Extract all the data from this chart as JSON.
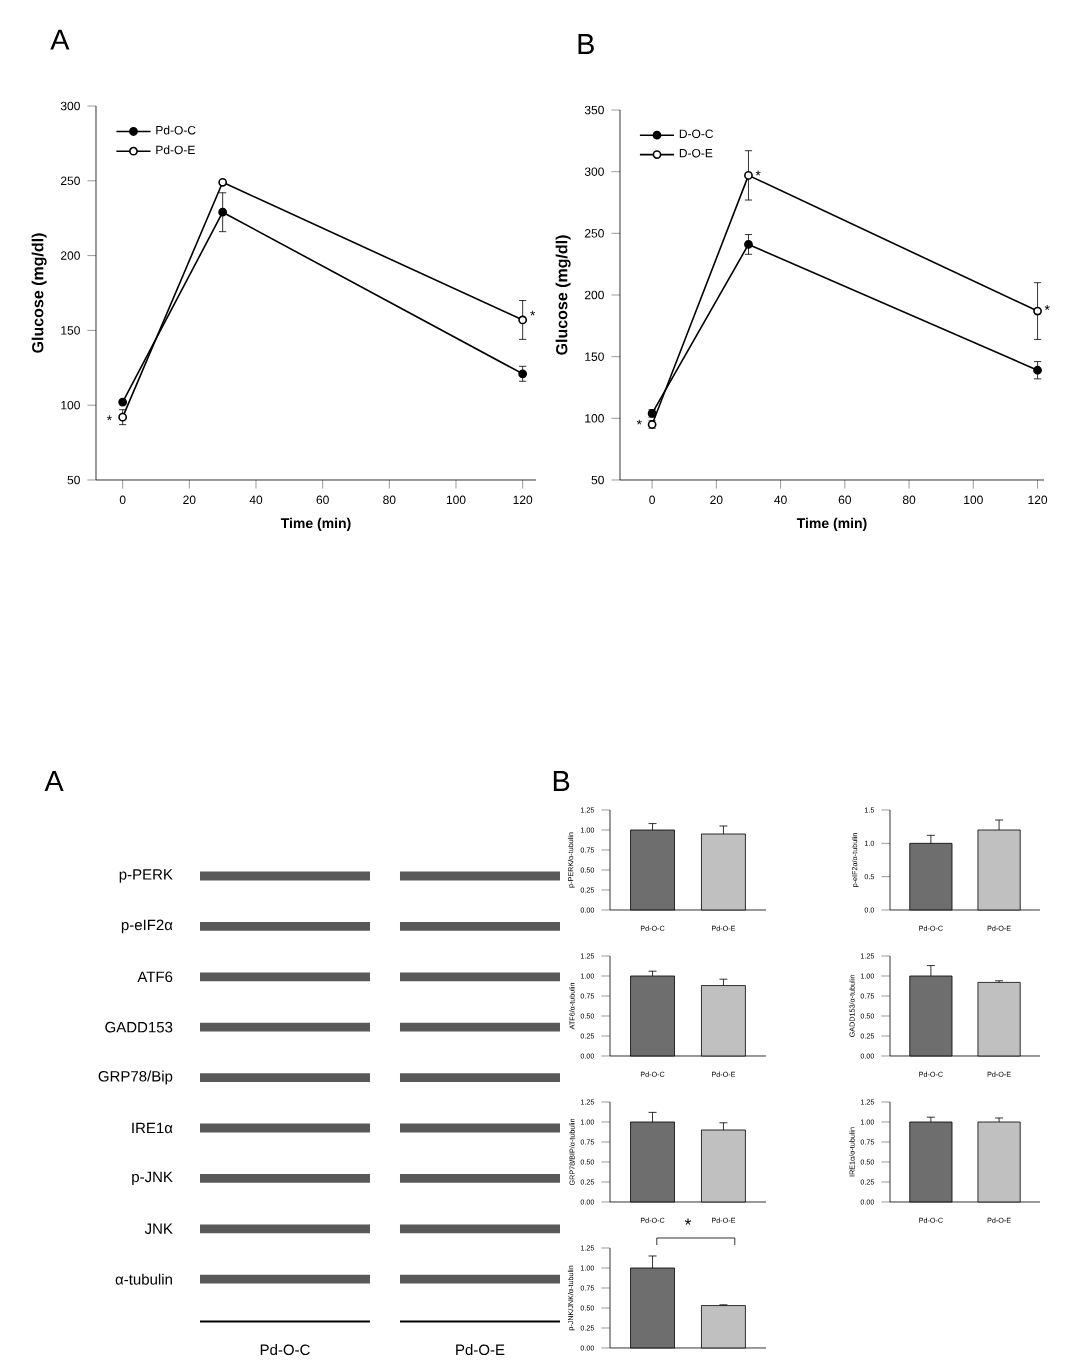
{
  "chart_data": [
    {
      "type": "line",
      "title": "A",
      "xlabel": "Time (min)",
      "ylabel": "Glucose (mg/dl)",
      "x": [
        0,
        30,
        120
      ],
      "xlim": [
        -8,
        124
      ],
      "xticks": [
        0,
        20,
        40,
        60,
        80,
        100,
        120
      ],
      "ylim": [
        50,
        300
      ],
      "yticks": [
        50,
        100,
        150,
        200,
        250,
        300
      ],
      "marker": "circle",
      "line_style": "solid",
      "legend": "top left",
      "grid": false,
      "series": [
        {
          "name": "Pd-O-C",
          "color": "#000000",
          "values": [
            102,
            229,
            121
          ],
          "errors": [
            null,
            13,
            5
          ]
        },
        {
          "name": "Pd-O-E",
          "color": "#000000",
          "values": [
            92,
            249,
            157
          ],
          "errors": [
            5,
            null,
            13
          ]
        }
      ],
      "annotations": [
        {
          "text": "*",
          "x": -4,
          "y": 90
        },
        {
          "text": "*",
          "x": 123,
          "y": 160
        }
      ]
    },
    {
      "type": "line",
      "title": "B",
      "xlabel": "Time (min)",
      "ylabel": "Glucose (mg/dl)",
      "x": [
        0,
        30,
        120
      ],
      "xlim": [
        -10,
        122
      ],
      "xticks": [
        0,
        20,
        40,
        60,
        80,
        100,
        120
      ],
      "ylim": [
        50,
        350
      ],
      "yticks": [
        50,
        100,
        150,
        200,
        250,
        300,
        350
      ],
      "marker": "circle",
      "line_style": "solid",
      "legend": "top left",
      "grid": false,
      "series": [
        {
          "name": "D-O-C",
          "color": "#000000",
          "values": [
            104,
            241,
            139
          ],
          "errors": [
            3,
            8,
            7
          ]
        },
        {
          "name": "D-O-E",
          "color": "#000000",
          "values": [
            95,
            297,
            187
          ],
          "errors": [
            3,
            20,
            23
          ]
        }
      ],
      "annotations": [
        {
          "text": "*",
          "x": -4,
          "y": 95
        },
        {
          "text": "*",
          "x": 33,
          "y": 297
        },
        {
          "text": "*",
          "x": 123,
          "y": 188
        }
      ]
    },
    {
      "type": "other",
      "title": "A",
      "annotations": [
        "p-PERK",
        "p-eIF2α",
        "ATF6",
        "GADD153",
        "GRP78/Bip",
        "IRE1α",
        "p-JNK",
        "JNK",
        "α-tubulin",
        "Pd-O-C",
        "Pd-O-E"
      ]
    },
    {
      "type": "bar",
      "title": "B",
      "ylabel": "p-PERK/α-tubulin",
      "categories": [
        "Pd-O-C",
        "Pd-O-E"
      ],
      "values": [
        1.0,
        0.95
      ],
      "errors": [
        0.08,
        0.1
      ],
      "colors": [
        "#6e6e6e",
        "#c0c0c0"
      ],
      "ylim": [
        0,
        1.25
      ],
      "yticks": [
        {
          "value": 0,
          "label": "0.00"
        },
        {
          "value": 0.25,
          "label": "0.25"
        },
        {
          "value": 0.5,
          "label": "0.50"
        },
        {
          "value": 0.75,
          "label": "0.75"
        },
        {
          "value": 1.0,
          "label": "1.00"
        },
        {
          "value": 1.25,
          "label": "1.25"
        }
      ]
    },
    {
      "type": "bar",
      "ylabel": "p-eIF2α/α-tubulin",
      "categories": [
        "Pd-O-C",
        "Pd-O-E"
      ],
      "values": [
        1.0,
        1.2
      ],
      "errors": [
        0.12,
        0.15
      ],
      "colors": [
        "#6e6e6e",
        "#c0c0c0"
      ],
      "ylim": [
        0,
        1.5
      ],
      "yticks": [
        {
          "value": 0,
          "label": "0.0"
        },
        {
          "value": 0.5,
          "label": "0.5"
        },
        {
          "value": 1.0,
          "label": "1.0"
        },
        {
          "value": 1.5,
          "label": "1.5"
        }
      ]
    },
    {
      "type": "bar",
      "ylabel": "ATF6/α-tubulin",
      "categories": [
        "Pd-O-C",
        "Pd-O-E"
      ],
      "values": [
        1.0,
        0.88
      ],
      "errors": [
        0.06,
        0.08
      ],
      "colors": [
        "#6e6e6e",
        "#c0c0c0"
      ],
      "ylim": [
        0,
        1.25
      ],
      "yticks": [
        {
          "value": 0,
          "label": "0.00"
        },
        {
          "value": 0.25,
          "label": "0.25"
        },
        {
          "value": 0.5,
          "label": "0.50"
        },
        {
          "value": 0.75,
          "label": "0.75"
        },
        {
          "value": 1.0,
          "label": "1.00"
        },
        {
          "value": 1.25,
          "label": "1.25"
        }
      ]
    },
    {
      "type": "bar",
      "ylabel": "GADD153/α-tubulin",
      "categories": [
        "Pd-O-C",
        "Pd-O-E"
      ],
      "values": [
        1.0,
        0.92
      ],
      "errors": [
        0.13,
        0.02
      ],
      "colors": [
        "#6e6e6e",
        "#c0c0c0"
      ],
      "ylim": [
        0,
        1.25
      ],
      "yticks": [
        {
          "value": 0,
          "label": "0.00"
        },
        {
          "value": 0.25,
          "label": "0.25"
        },
        {
          "value": 0.5,
          "label": "0.50"
        },
        {
          "value": 0.75,
          "label": "0.75"
        },
        {
          "value": 1.0,
          "label": "1.00"
        },
        {
          "value": 1.25,
          "label": "1.25"
        }
      ]
    },
    {
      "type": "bar",
      "ylabel": "GRP78/BIP/α-tubulin",
      "categories": [
        "Pd-O-C",
        "Pd-O-E"
      ],
      "values": [
        1.0,
        0.9
      ],
      "errors": [
        0.12,
        0.09
      ],
      "colors": [
        "#6e6e6e",
        "#c0c0c0"
      ],
      "ylim": [
        0,
        1.25
      ],
      "yticks": [
        {
          "value": 0,
          "label": "0.00"
        },
        {
          "value": 0.25,
          "label": "0.25"
        },
        {
          "value": 0.5,
          "label": "0.50"
        },
        {
          "value": 0.75,
          "label": "0.75"
        },
        {
          "value": 1.0,
          "label": "1.00"
        },
        {
          "value": 1.25,
          "label": "1.25"
        }
      ]
    },
    {
      "type": "bar",
      "ylabel": "IRE1α/α-tubulin",
      "categories": [
        "Pd-O-C",
        "Pd-O-E"
      ],
      "values": [
        1.0,
        1.0
      ],
      "errors": [
        0.06,
        0.05
      ],
      "colors": [
        "#6e6e6e",
        "#c0c0c0"
      ],
      "ylim": [
        0,
        1.25
      ],
      "yticks": [
        {
          "value": 0,
          "label": "0.00"
        },
        {
          "value": 0.25,
          "label": "0.25"
        },
        {
          "value": 0.5,
          "label": "0.50"
        },
        {
          "value": 0.75,
          "label": "0.75"
        },
        {
          "value": 1.0,
          "label": "1.00"
        },
        {
          "value": 1.25,
          "label": "1.25"
        }
      ]
    },
    {
      "type": "bar",
      "ylabel": "p-JNK/JNK/α-tubulin",
      "categories": [
        null,
        null
      ],
      "tick_labels": "y",
      "values": [
        1.0,
        0.53
      ],
      "errors": [
        0.15,
        0.01
      ],
      "colors": [
        "#6e6e6e",
        "#c0c0c0"
      ],
      "ylim": [
        0,
        1.25
      ],
      "yticks": [
        {
          "value": 0,
          "label": "0.00"
        },
        {
          "value": 0.25,
          "label": "0.25"
        },
        {
          "value": 0.5,
          "label": "0.50"
        },
        {
          "value": 0.75,
          "label": "0.75"
        },
        {
          "value": 1.0,
          "label": "1.00"
        },
        {
          "value": 1.25,
          "label": "1.25"
        }
      ],
      "annotations": [
        "*"
      ]
    }
  ]
}
